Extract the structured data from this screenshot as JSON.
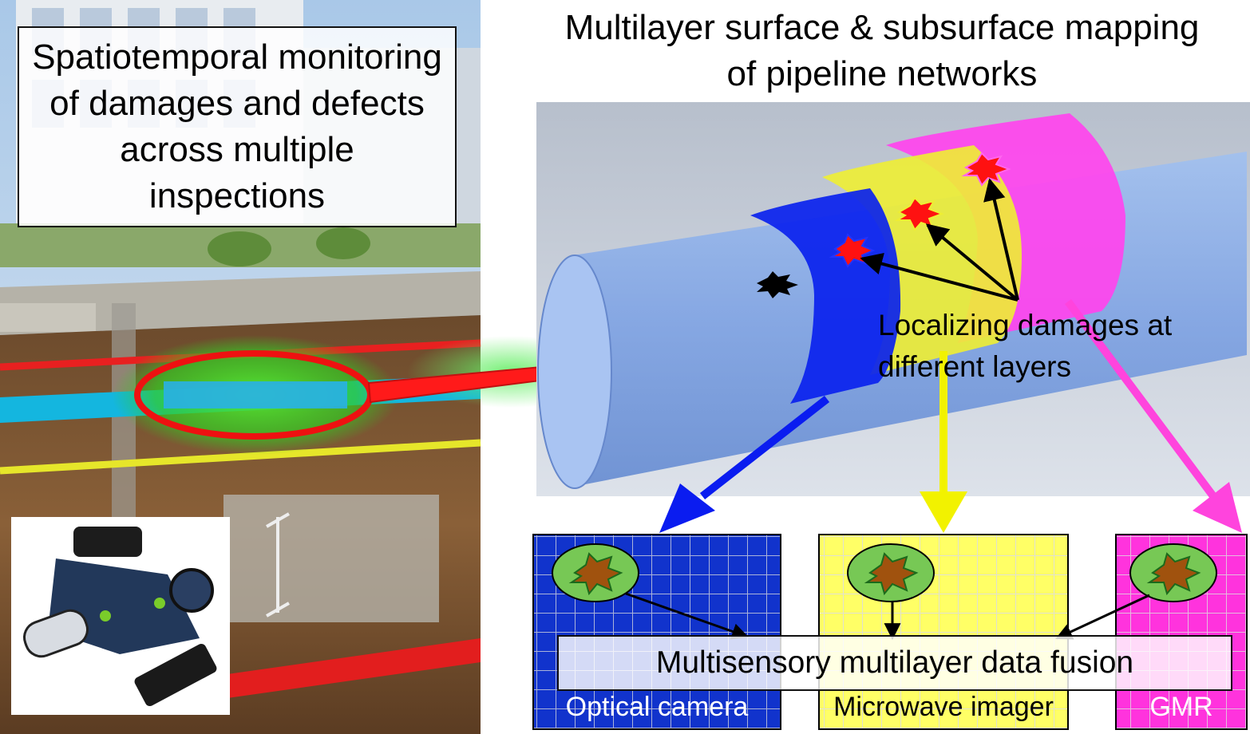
{
  "left_panel": {
    "title": "Spatiotemporal monitoring of damages and defects across multiple inspections"
  },
  "right_panel": {
    "title": "Multilayer surface & subsurface mapping of pipeline networks",
    "layer_annotation": "Localizing damages at different layers"
  },
  "sensor_panels": [
    {
      "name": "Optical camera",
      "color": "#1133cc"
    },
    {
      "name": "Microwave imager",
      "color": "#ffff66"
    },
    {
      "name": "GMR",
      "color": "#ff33dd"
    }
  ],
  "fusion": {
    "label": "Multisensory multilayer data fusion"
  },
  "colors": {
    "arrow_main": "#ff1a1a",
    "highlight_glow": "#33dd22",
    "pipe": "#8fb2ee",
    "layer_blue": "#0a22ee",
    "layer_yellow": "#eeee33",
    "layer_magenta": "#ff44ee",
    "damage": "#ff1111"
  }
}
